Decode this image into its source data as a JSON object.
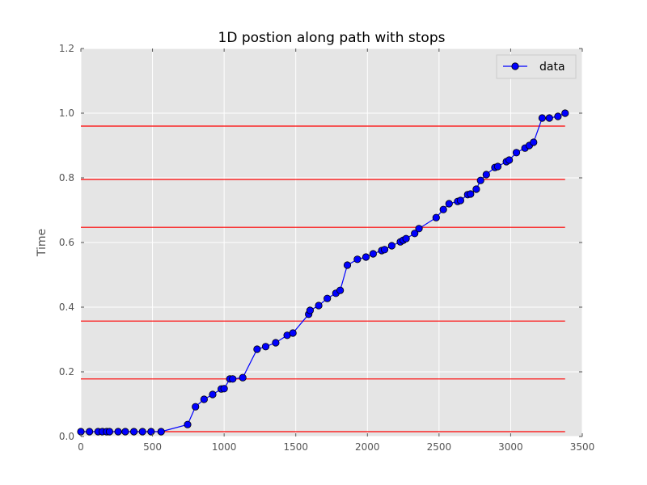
{
  "chart_data": {
    "type": "line",
    "title": "1D postion along path with stops",
    "xlabel": "",
    "ylabel": "Time",
    "xlim": [
      0,
      3500
    ],
    "ylim": [
      0,
      1.2
    ],
    "xticks": [
      0,
      500,
      1000,
      1500,
      2000,
      2500,
      3000,
      3500
    ],
    "yticks": [
      0.0,
      0.2,
      0.4,
      0.6,
      0.8,
      1.0,
      1.2
    ],
    "xtick_labels": [
      "0",
      "500",
      "1000",
      "1500",
      "2000",
      "2500",
      "3000",
      "3500"
    ],
    "ytick_labels": [
      "0.0",
      "0.2",
      "0.4",
      "0.6",
      "0.8",
      "1.0",
      "1.2"
    ],
    "grid": true,
    "legend_position": "top-right",
    "series": [
      {
        "name": "data",
        "color": "#0000ff",
        "marker": "circle",
        "x": [
          0,
          60,
          120,
          150,
          180,
          200,
          260,
          310,
          370,
          430,
          490,
          560,
          745,
          800,
          860,
          920,
          980,
          1000,
          1040,
          1060,
          1130,
          1230,
          1290,
          1360,
          1440,
          1480,
          1590,
          1600,
          1660,
          1720,
          1780,
          1810,
          1860,
          1930,
          1990,
          2040,
          2100,
          2120,
          2170,
          2230,
          2250,
          2270,
          2330,
          2360,
          2480,
          2530,
          2570,
          2630,
          2650,
          2700,
          2720,
          2760,
          2790,
          2830,
          2890,
          2910,
          2970,
          2990,
          3040,
          3100,
          3130,
          3160,
          3220,
          3270,
          3330,
          3380
        ],
        "y": [
          0.015,
          0.015,
          0.015,
          0.015,
          0.015,
          0.015,
          0.015,
          0.015,
          0.015,
          0.015,
          0.015,
          0.015,
          0.037,
          0.092,
          0.115,
          0.13,
          0.147,
          0.148,
          0.178,
          0.178,
          0.182,
          0.27,
          0.278,
          0.29,
          0.313,
          0.32,
          0.378,
          0.39,
          0.405,
          0.427,
          0.443,
          0.452,
          0.53,
          0.548,
          0.555,
          0.565,
          0.575,
          0.578,
          0.59,
          0.602,
          0.607,
          0.612,
          0.628,
          0.643,
          0.677,
          0.702,
          0.72,
          0.727,
          0.73,
          0.748,
          0.75,
          0.765,
          0.792,
          0.81,
          0.832,
          0.835,
          0.85,
          0.855,
          0.878,
          0.892,
          0.9,
          0.91,
          0.985,
          0.985,
          0.99,
          1.0
        ]
      }
    ],
    "reference_lines": {
      "orientation": "horizontal",
      "color": "#ff0000",
      "values": [
        0.015,
        0.178,
        0.357,
        0.647,
        0.795,
        0.96
      ],
      "x_range": [
        0,
        3380
      ]
    },
    "background_color": "#e5e5e5"
  }
}
